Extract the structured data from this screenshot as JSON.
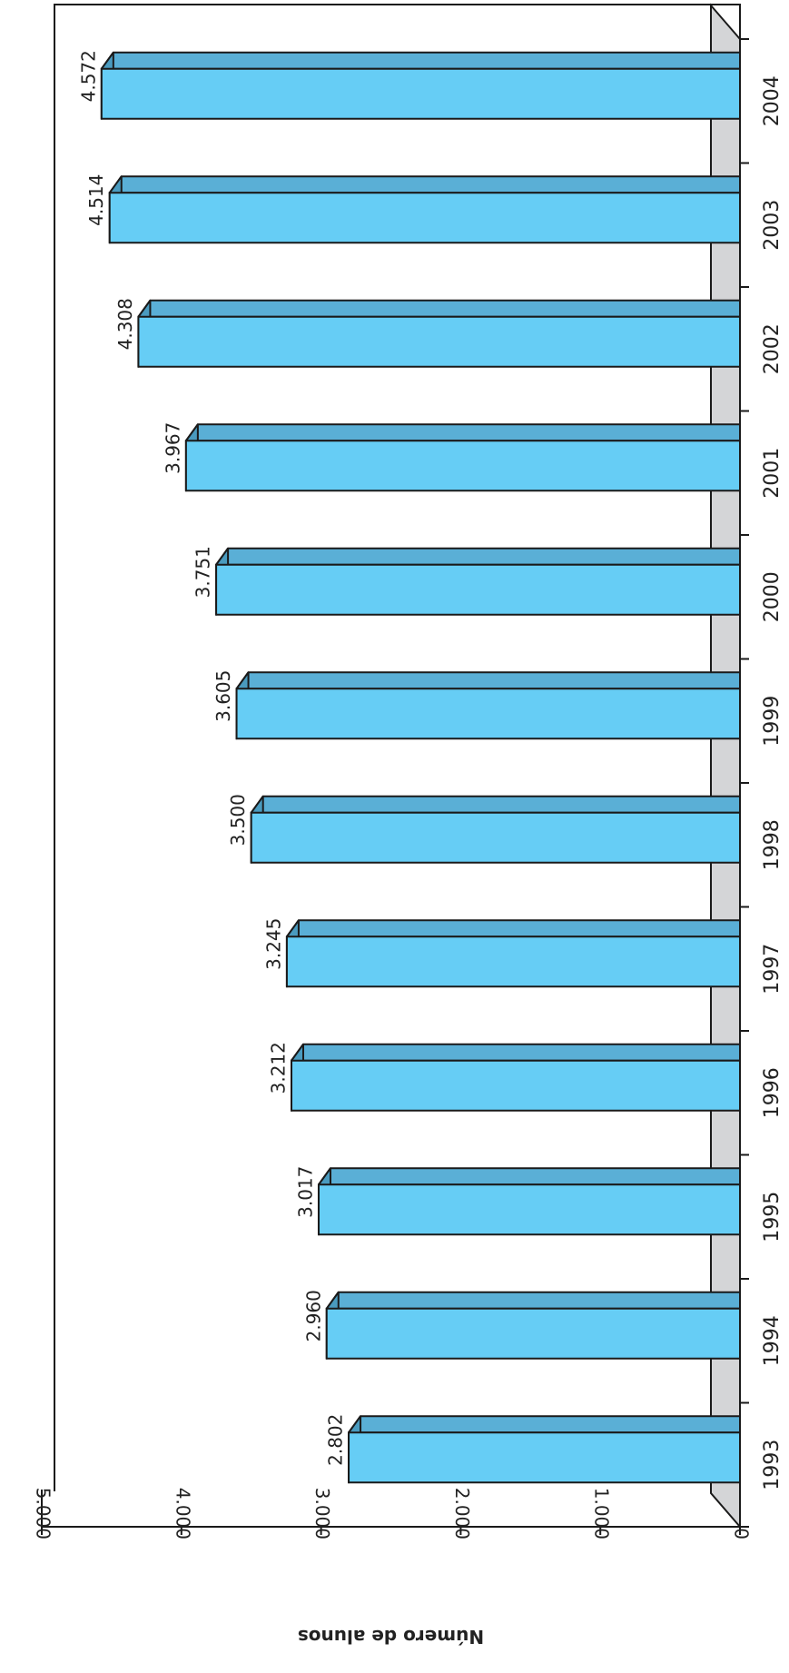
{
  "chart_data": {
    "type": "bar",
    "orientation": "rotated-90-clockwise",
    "categories": [
      "1993",
      "1994",
      "1995",
      "1996",
      "1997",
      "1998",
      "1999",
      "2000",
      "2001",
      "2002",
      "2003",
      "2004"
    ],
    "values": [
      2802,
      2960,
      3017,
      3212,
      3245,
      3500,
      3605,
      3751,
      3967,
      4308,
      4514,
      4572
    ],
    "value_labels": [
      "2.802",
      "2.960",
      "3.017",
      "3.212",
      "3.245",
      "3.500",
      "3.605",
      "3.751",
      "3.967",
      "4.308",
      "4.514",
      "4.572"
    ],
    "ylabel": "Número de alunos",
    "xlabel": "",
    "title": "",
    "ylim": [
      0,
      5000
    ],
    "y_ticks": [
      0,
      1000,
      2000,
      3000,
      4000,
      5000
    ],
    "y_tick_labels": [
      "0",
      "1.000",
      "2.000",
      "3.000",
      "4.000",
      "5.000"
    ],
    "grid": false,
    "style": "3d",
    "colors": {
      "bar_front": "#66cdf5",
      "bar_side": "#4a9bbf",
      "bar_top": "#5aafd6",
      "floor": "#d4d5d7",
      "edge": "#1a1a1a"
    }
  }
}
